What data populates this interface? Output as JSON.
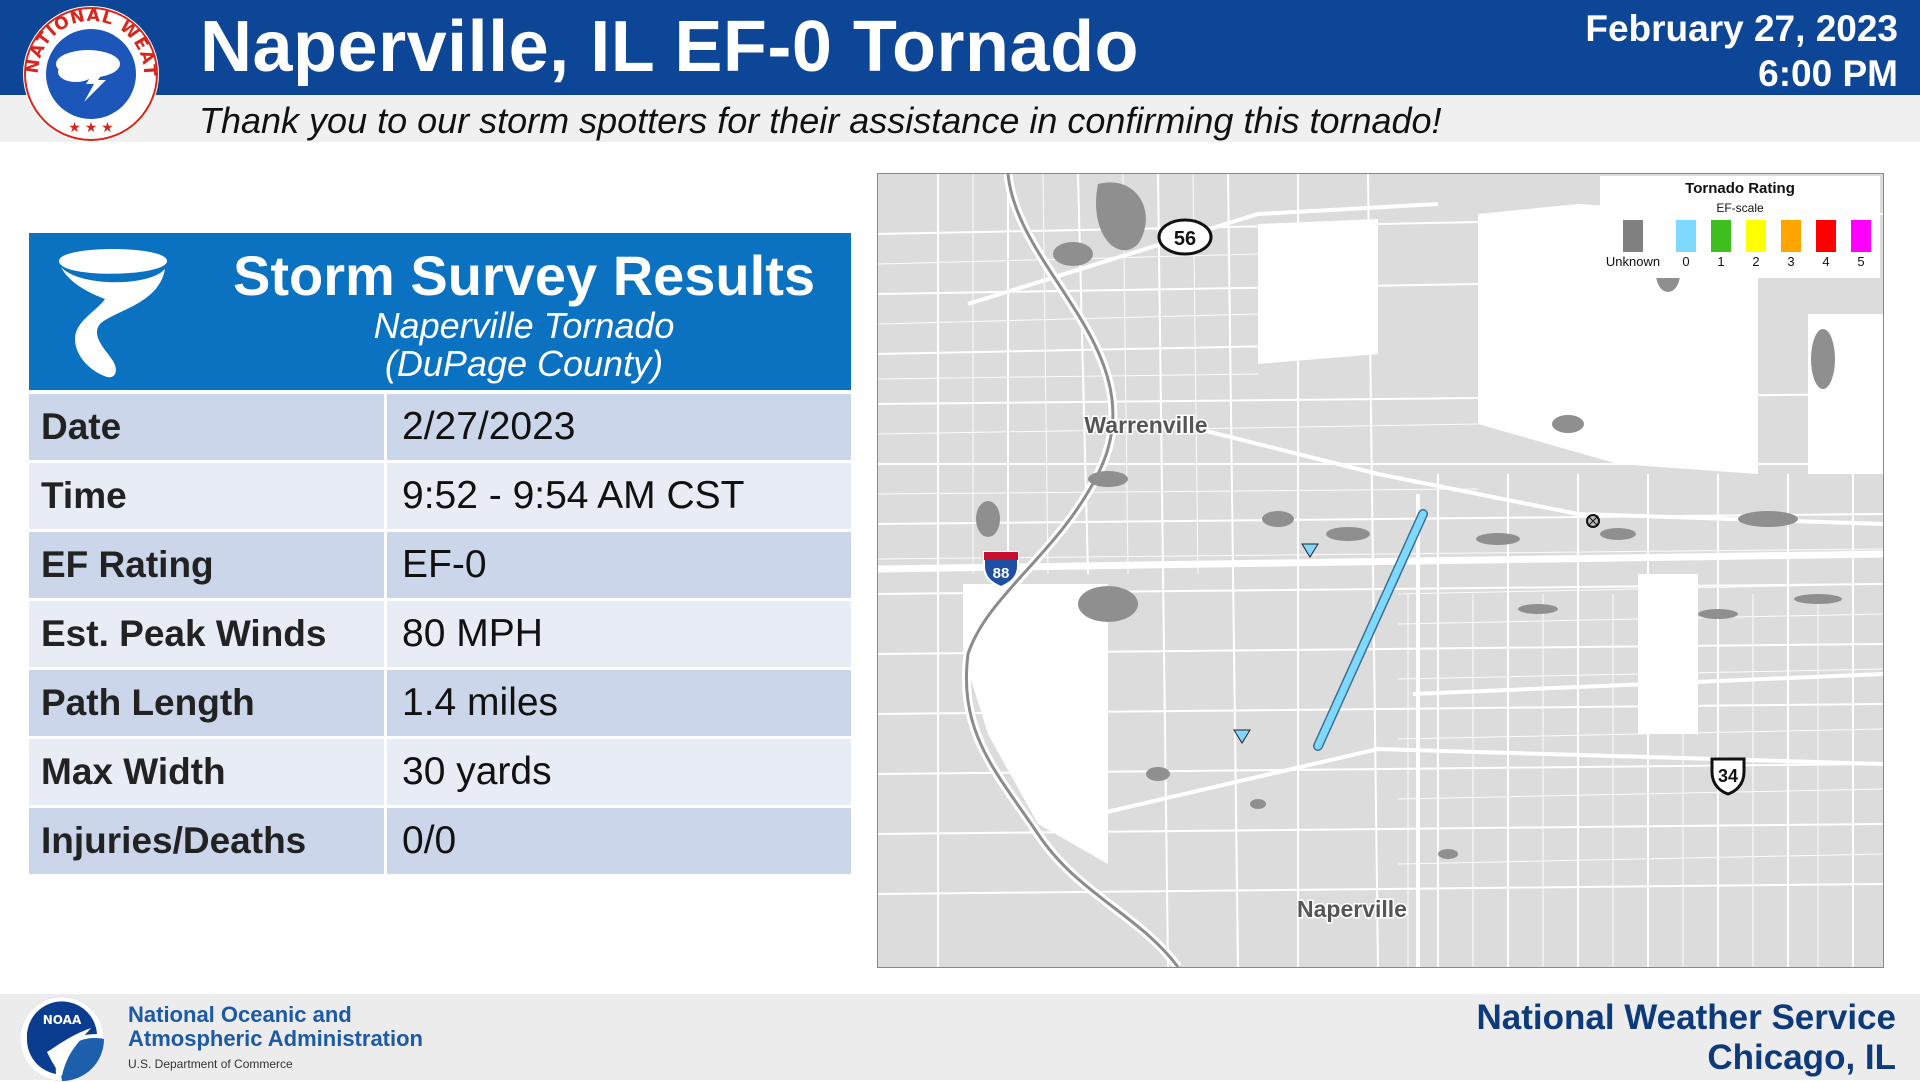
{
  "header": {
    "title": "Naperville, IL EF-0 Tornado",
    "date": "February 27, 2023",
    "time": "6:00 PM",
    "subtitle": "Thank you to our storm spotters for their assistance in confirming this tornado!",
    "logo_text": "NATIONAL WEATHER SERVICE"
  },
  "survey": {
    "title": "Storm Survey Results",
    "name": "Naperville Tornado",
    "county": "(DuPage County)",
    "rows": [
      {
        "label": "Date",
        "value": "2/27/2023"
      },
      {
        "label": "Time",
        "value": "9:52 - 9:54 AM CST"
      },
      {
        "label": "EF Rating",
        "value": "EF-0"
      },
      {
        "label": "Est. Peak Winds",
        "value": "80 MPH"
      },
      {
        "label": "Path Length",
        "value": "1.4 miles"
      },
      {
        "label": "Max Width",
        "value": "30 yards"
      },
      {
        "label": "Injuries/Deaths",
        "value": "0/0"
      }
    ]
  },
  "map": {
    "places": [
      "Warrenville",
      "Naperville"
    ],
    "routes": [
      "56",
      "88",
      "34"
    ],
    "legend": {
      "title": "Tornado Rating",
      "subtitle": "EF-scale",
      "items": [
        {
          "label": "Unknown",
          "color": "#808080"
        },
        {
          "label": "0",
          "color": "#7fd8ff"
        },
        {
          "label": "1",
          "color": "#3fbf1f"
        },
        {
          "label": "2",
          "color": "#ffff00"
        },
        {
          "label": "3",
          "color": "#ffa500"
        },
        {
          "label": "4",
          "color": "#ff0000"
        },
        {
          "label": "5",
          "color": "#ff00ff"
        }
      ]
    },
    "track_color": "#7fd8ff"
  },
  "footer": {
    "noaa_line1": "National Oceanic and",
    "noaa_line2": "Atmospheric Administration",
    "noaa_dept": "U.S. Department of Commerce",
    "noaa_logo_text": "NOAA",
    "nws_name": "National Weather Service",
    "nws_city": "Chicago, IL"
  },
  "colors": {
    "header_blue": "#0d4597",
    "panel_blue": "#0a72c1",
    "row_dark": "#ccd6ea",
    "row_light": "#e8ecf5"
  }
}
